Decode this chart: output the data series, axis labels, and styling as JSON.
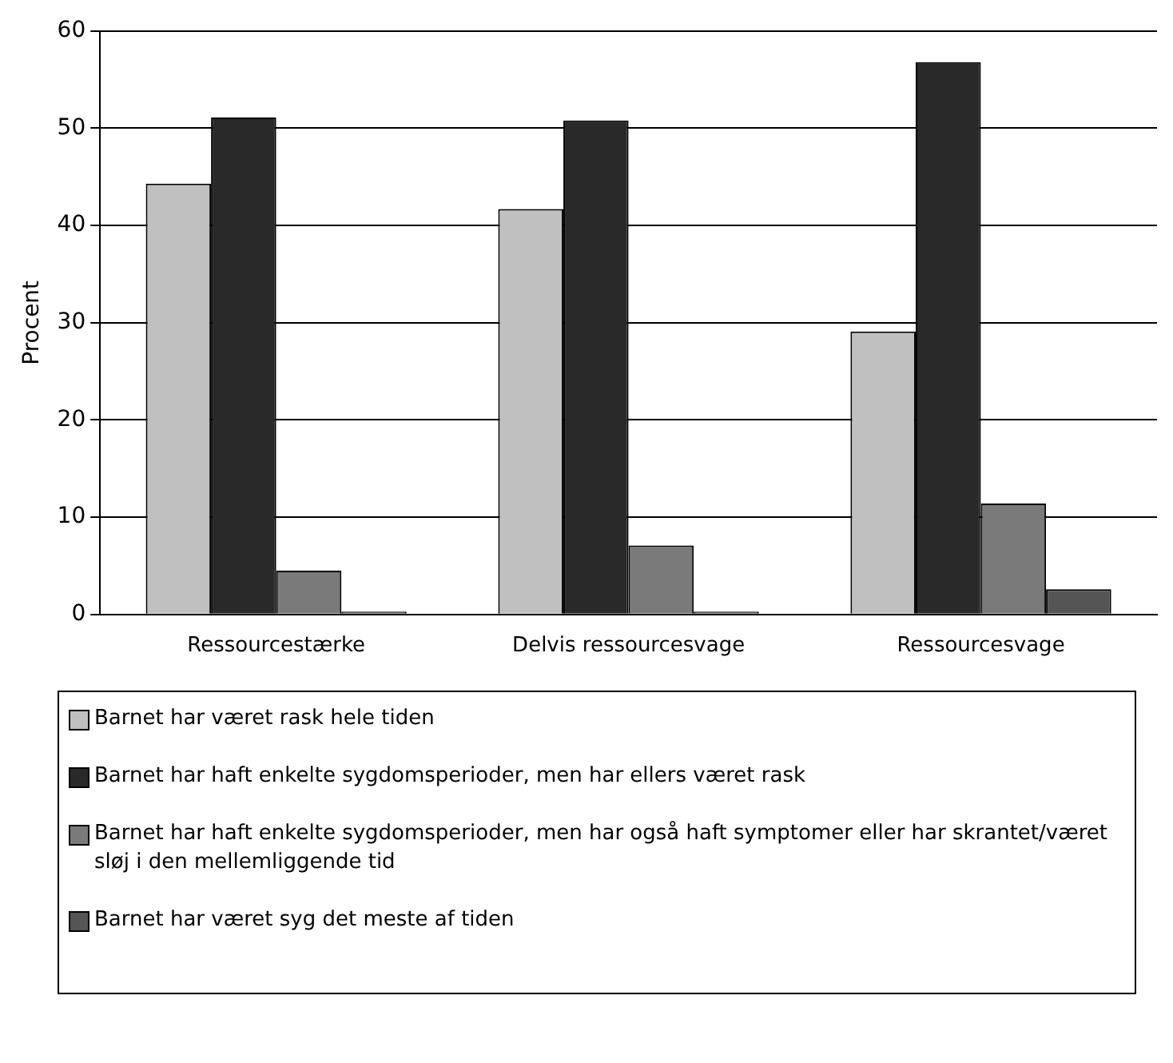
{
  "chart_data": {
    "type": "bar",
    "ylabel": "Procent",
    "categories": [
      "Ressourcestærke",
      "Delvis ressourcesvage",
      "Ressourcesvage"
    ],
    "series": [
      {
        "name": "Barnet har været rask hele tiden",
        "color": "#c0c0c0",
        "values": [
          44.3,
          41.7,
          29.1
        ]
      },
      {
        "name": "Barnet har haft enkelte sygdomsperioder, men har ellers været rask",
        "color": "#292929",
        "values": [
          51.1,
          50.8,
          56.8
        ]
      },
      {
        "name": "Barnet har haft enkelte sygdomsperioder, men har også haft symptomer eller har skrantet/været sløj i den mellemliggende tid",
        "color": "#7a7a7a",
        "values": [
          4.5,
          7.1,
          11.4
        ]
      },
      {
        "name": "Barnet har været syg det meste af tiden",
        "color": "#555555",
        "values": [
          0.3,
          0.3,
          2.6
        ]
      }
    ],
    "ylim": [
      0,
      60
    ],
    "yticks": [
      0,
      10,
      20,
      30,
      40,
      50,
      60
    ],
    "grid": "y",
    "legend": "bottom"
  }
}
